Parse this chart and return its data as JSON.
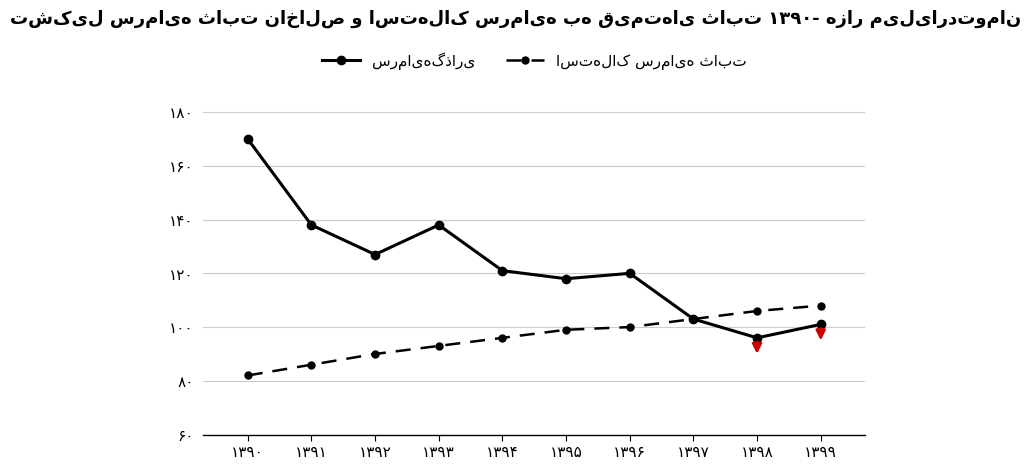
{
  "years": [
    1390,
    1391,
    1392,
    1393,
    1394,
    1395,
    1396,
    1397,
    1398,
    1399
  ],
  "investment": [
    170,
    138,
    127,
    138,
    121,
    118,
    120,
    103,
    96,
    101
  ],
  "depreciation": [
    82,
    86,
    90,
    93,
    96,
    99,
    100,
    103,
    106,
    108
  ],
  "title": "تشکیل سرمایه ثابت ناخالص و استهلاک سرمایه به قیمت‌های ثابت ۱۳۹۰- هزار میلیاردتومان",
  "legend_investment": "سرمایهگذاری",
  "legend_depreciation": "استهلاک سرمایه ثابت",
  "ylim": [
    60,
    185
  ],
  "yticks": [
    60,
    80,
    100,
    120,
    140,
    160,
    180
  ],
  "ytick_labels": [
    "۶۰",
    "۸۰",
    "۱۰۰",
    "۱۲۰",
    "۱۴۰",
    "۱۶۰",
    "۱۸۰"
  ],
  "xtick_labels": [
    "۱۳۹۰",
    "۱۳۹۱",
    "۱۳۹۲",
    "۱۳۹۳",
    "۱۳۹۴",
    "۱۳۹۵",
    "۱۳۹۶",
    "۱۳۹۷",
    "۱۳۹۸",
    "۱۳۹۹"
  ],
  "background_color": "#ffffff",
  "line_color": "#000000",
  "red_arrow_years": [
    1398,
    1399
  ],
  "red_arrow_color": "#cc0000"
}
